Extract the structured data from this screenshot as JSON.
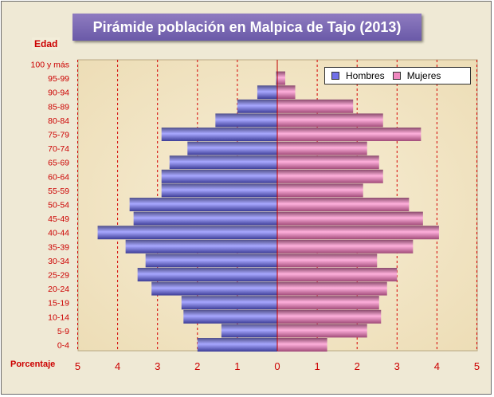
{
  "chart_data": {
    "type": "bar",
    "orientation": "horizontal-pyramid",
    "title": "Pirámide población en Malpica de Tajo (2013)",
    "ylabel": "Edad",
    "xlabel": "Porcentaje",
    "xlim": [
      -5,
      5
    ],
    "x_ticks": [
      "5",
      "4",
      "3",
      "2",
      "1",
      "0",
      "1",
      "2",
      "3",
      "4",
      "5"
    ],
    "grid": "vertical dashed red",
    "legend_position": "top-right",
    "categories": [
      "100 y más",
      "95-99",
      "90-94",
      "85-89",
      "80-84",
      "75-79",
      "70-74",
      "65-69",
      "60-64",
      "55-59",
      "50-54",
      "45-49",
      "40-44",
      "35-39",
      "30-34",
      "25-29",
      "20-24",
      "15-19",
      "10-14",
      "5-9",
      "0-4"
    ],
    "series": [
      {
        "name": "Hombres",
        "color": "#7070e8",
        "values": [
          0,
          0.03,
          0.5,
          1.0,
          1.55,
          2.9,
          2.25,
          2.7,
          2.9,
          2.9,
          3.7,
          3.6,
          4.5,
          3.8,
          3.3,
          3.5,
          3.15,
          2.4,
          2.35,
          1.4,
          2.0
        ]
      },
      {
        "name": "Mujeres",
        "color": "#f088c0",
        "values": [
          0,
          0.2,
          0.45,
          1.9,
          2.65,
          3.6,
          2.25,
          2.55,
          2.65,
          2.15,
          3.3,
          3.65,
          4.05,
          3.4,
          2.5,
          3.0,
          2.75,
          2.55,
          2.6,
          2.25,
          1.25
        ]
      }
    ]
  }
}
